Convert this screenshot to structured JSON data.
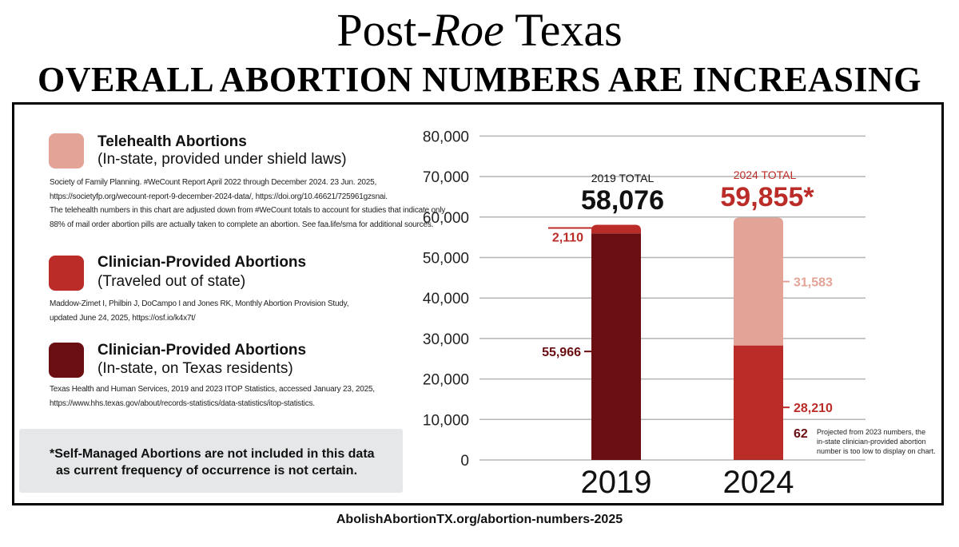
{
  "header": {
    "title_prefix": "Post-",
    "title_italic": "Roe",
    "title_suffix": " Texas",
    "subtitle": "OVERALL ABORTION NUMBERS ARE INCREASING"
  },
  "colors": {
    "telehealth": "#e4a397",
    "traveled": "#bb2c28",
    "instate": "#6a0e12",
    "total_2024_text": "#bb2c28",
    "note_bg": "#e6e7e8"
  },
  "legend": [
    {
      "title": "Telehealth Abortions",
      "subtitle": "(In-state, provided under shield laws)",
      "source": [
        "Society of Family Planning. #WeCount Report April 2022 through December 2024. 23 Jun. 2025,",
        "https://societyfp.org/wecount-report-9-december-2024-data/, https://doi.org/10.46621/725961gzsnai.",
        "The telehealth numbers in this chart are adjusted down from #WeCount totals to account for studies that indicate only",
        "88% of mail order abortion pills are actually taken to complete an abortion. See faa.life/sma for additional sources."
      ]
    },
    {
      "title": "Clinician-Provided Abortions",
      "subtitle": "(Traveled out of state)",
      "source": [
        "Maddow-Zimet I, Philbin J, DoCampo I and Jones RK, Monthly Abortion Provision Study,",
        "updated June 24, 2025, https://osf.io/k4x7t/"
      ]
    },
    {
      "title": "Clinician-Provided Abortions",
      "subtitle": "(In-state, on Texas residents)",
      "source": [
        "Texas Health and Human Services, 2019 and 2023 ITOP Statistics, accessed January 23, 2025,",
        "https://www.hhs.texas.gov/about/records-statistics/data-statistics/itop-statistics."
      ]
    }
  ],
  "note": {
    "line1": "*Self-Managed Abortions are not included in this data",
    "line2": "as current frequency of occurrence is not certain."
  },
  "footer_url": "AbolishAbortionTX.org/abortion-numbers-2025",
  "chart_data": {
    "type": "bar",
    "stacked": true,
    "categories": [
      "2019",
      "2024"
    ],
    "series": [
      {
        "key": "instate",
        "values": [
          55966,
          62
        ]
      },
      {
        "key": "traveled",
        "values": [
          2110,
          28210
        ]
      },
      {
        "key": "telehealth",
        "values": [
          0,
          31583
        ]
      }
    ],
    "value_labels": {
      "2019_instate": "55,966",
      "2019_traveled": "2,110",
      "2024_traveled": "28,210",
      "2024_telehealth": "31,583",
      "2024_instate": "62"
    },
    "totals": [
      {
        "label": "2019 TOTAL",
        "value": "58,076"
      },
      {
        "label": "2024 TOTAL",
        "value": "59,855*"
      }
    ],
    "projection_note": [
      "Projected from 2023 numbers, the",
      "in-state clinician-provided abortion",
      "number is too low to display on chart."
    ],
    "ylim": [
      0,
      80000
    ],
    "yticks": [
      0,
      10000,
      20000,
      30000,
      40000,
      50000,
      60000,
      70000,
      80000
    ],
    "ytick_labels": [
      "0",
      "10,000",
      "20,000",
      "30,000",
      "40,000",
      "50,000",
      "60,000",
      "70,000",
      "80,000"
    ],
    "grid": true
  }
}
